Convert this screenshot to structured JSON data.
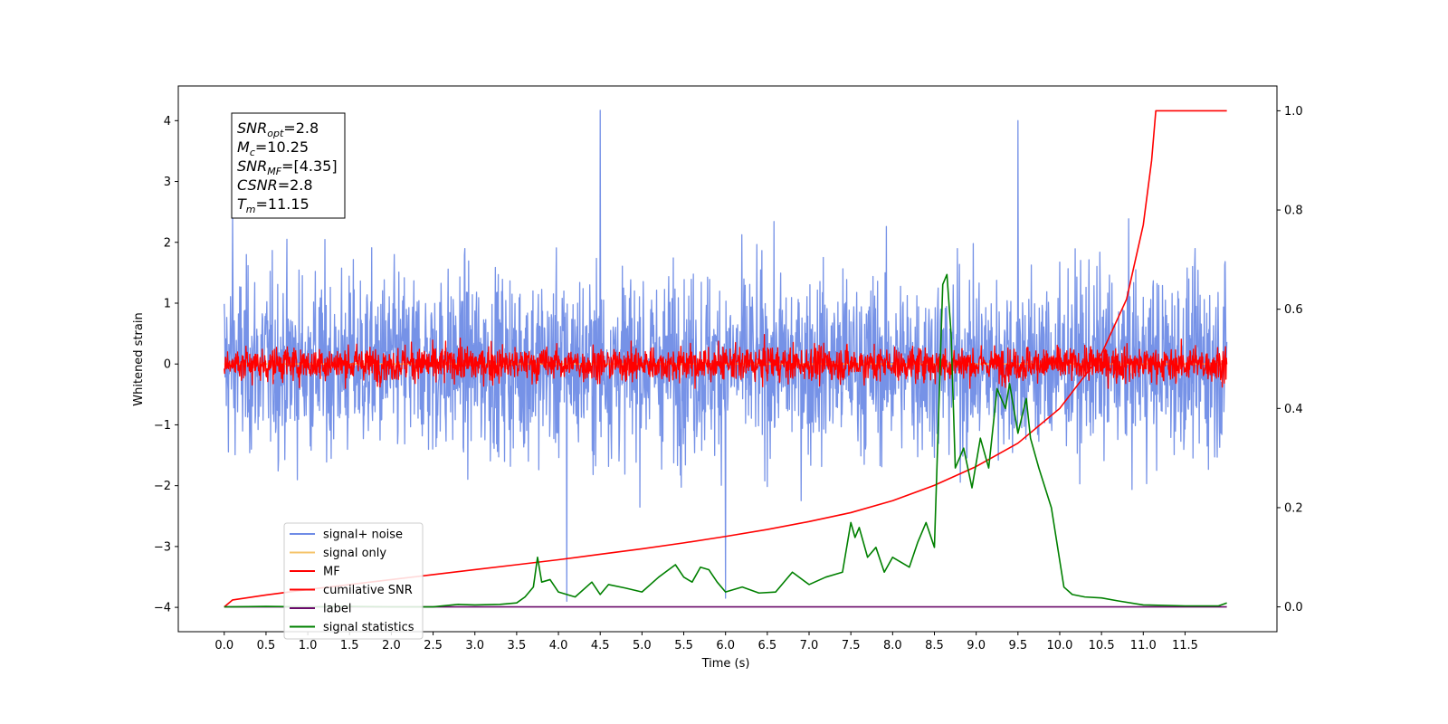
{
  "chart_data": {
    "type": "line",
    "xlabel": "Time (s)",
    "ylabel": "Whitened strain",
    "xlim": [
      -0.55,
      12.6
    ],
    "ylim": [
      -4.4,
      4.57
    ],
    "y2lim": [
      -0.05,
      1.05
    ],
    "xticks": [
      "0.0",
      "0.5",
      "1.0",
      "1.5",
      "2.0",
      "2.5",
      "3.0",
      "3.5",
      "4.0",
      "4.5",
      "5.0",
      "5.5",
      "6.0",
      "6.5",
      "7.0",
      "7.5",
      "8.0",
      "8.5",
      "9.0",
      "9.5",
      "10.0",
      "10.5",
      "11.0",
      "11.5"
    ],
    "yticks": [
      "−4",
      "−3",
      "−2",
      "−1",
      "0",
      "1",
      "2",
      "3",
      "4"
    ],
    "y2ticks": [
      "0.0",
      "0.2",
      "0.4",
      "0.6",
      "0.8",
      "1.0"
    ],
    "grid": false,
    "legend_position": "lower-left",
    "info_box": [
      {
        "sym": "SNR",
        "sub": "opt",
        "val": "=2.8"
      },
      {
        "sym": "M",
        "sub": "c",
        "val": "=10.25"
      },
      {
        "sym": "SNR",
        "sub": "MF",
        "val": "=[4.35]"
      },
      {
        "sym": "CSNR",
        "sub": "",
        "val": "=2.8"
      },
      {
        "sym": "T",
        "sub": "m",
        "val": "=11.15"
      }
    ],
    "series": [
      {
        "name": "signal+ noise",
        "color": "#6f8ce6",
        "axis": "left",
        "style": "noise",
        "x_range": [
          0,
          12.0
        ],
        "amplitude_spread": 1.05,
        "peaks": [
          [
            0.1,
            2.5
          ],
          [
            4.5,
            4.17
          ],
          [
            9.5,
            4.0
          ],
          [
            4.1,
            -3.9
          ],
          [
            6.0,
            -3.85
          ]
        ]
      },
      {
        "name": "signal only",
        "color": "#f5c46b",
        "axis": "left",
        "style": "flat",
        "x_range": [
          0,
          12.0
        ],
        "value": 0
      },
      {
        "name": "MF",
        "color": "#ff0000",
        "axis": "left",
        "style": "noise",
        "x_range": [
          0,
          12.0
        ],
        "amplitude_spread": 0.2,
        "upper_max": 0.9,
        "lower_min": -0.4
      },
      {
        "name": "cumilative SNR",
        "color": "#ff0000",
        "axis": "right",
        "x": [
          0,
          0.1,
          0.5,
          1,
          1.5,
          2,
          2.5,
          3,
          3.5,
          4,
          4.5,
          5,
          5.5,
          6,
          6.5,
          7,
          7.5,
          8,
          8.5,
          9,
          9.5,
          10,
          10.5,
          10.8,
          11.0,
          11.1,
          11.15,
          11.5,
          12.0
        ],
        "y": [
          0.0,
          0.014,
          0.024,
          0.035,
          0.045,
          0.055,
          0.065,
          0.075,
          0.085,
          0.095,
          0.106,
          0.117,
          0.129,
          0.142,
          0.156,
          0.172,
          0.19,
          0.214,
          0.245,
          0.283,
          0.33,
          0.4,
          0.51,
          0.62,
          0.77,
          0.9,
          1.0,
          1.0,
          1.0
        ]
      },
      {
        "name": "label",
        "color": "#6a0a6a",
        "axis": "right",
        "x": [
          0,
          12.0
        ],
        "y": [
          0.0,
          0.0
        ]
      },
      {
        "name": "signal statistics",
        "color": "#008000",
        "axis": "right",
        "x": [
          0,
          0.5,
          1.0,
          1.5,
          2.0,
          2.5,
          2.8,
          3.0,
          3.3,
          3.5,
          3.6,
          3.7,
          3.75,
          3.8,
          3.9,
          4.0,
          4.2,
          4.4,
          4.5,
          4.6,
          4.8,
          5.0,
          5.2,
          5.4,
          5.5,
          5.6,
          5.7,
          5.8,
          5.9,
          6.0,
          6.2,
          6.4,
          6.6,
          6.8,
          7.0,
          7.2,
          7.4,
          7.5,
          7.55,
          7.6,
          7.7,
          7.8,
          7.9,
          8.0,
          8.2,
          8.3,
          8.4,
          8.5,
          8.6,
          8.65,
          8.7,
          8.75,
          8.85,
          8.95,
          9.05,
          9.15,
          9.25,
          9.35,
          9.4,
          9.5,
          9.6,
          9.65,
          9.75,
          9.9,
          10.05,
          10.15,
          10.3,
          10.5,
          10.7,
          11.0,
          11.5,
          11.9,
          12.0
        ],
        "y": [
          0.0,
          0.001,
          0.0,
          0.001,
          0.0,
          0.0,
          0.005,
          0.004,
          0.005,
          0.008,
          0.02,
          0.04,
          0.1,
          0.05,
          0.055,
          0.03,
          0.02,
          0.05,
          0.025,
          0.045,
          0.038,
          0.03,
          0.06,
          0.085,
          0.06,
          0.05,
          0.08,
          0.075,
          0.05,
          0.03,
          0.04,
          0.028,
          0.03,
          0.07,
          0.045,
          0.06,
          0.07,
          0.17,
          0.14,
          0.16,
          0.1,
          0.12,
          0.07,
          0.1,
          0.08,
          0.13,
          0.17,
          0.12,
          0.65,
          0.67,
          0.55,
          0.28,
          0.32,
          0.24,
          0.34,
          0.28,
          0.44,
          0.4,
          0.45,
          0.35,
          0.42,
          0.34,
          0.28,
          0.2,
          0.04,
          0.025,
          0.02,
          0.018,
          0.012,
          0.004,
          0.002,
          0.002,
          0.008
        ]
      }
    ]
  }
}
